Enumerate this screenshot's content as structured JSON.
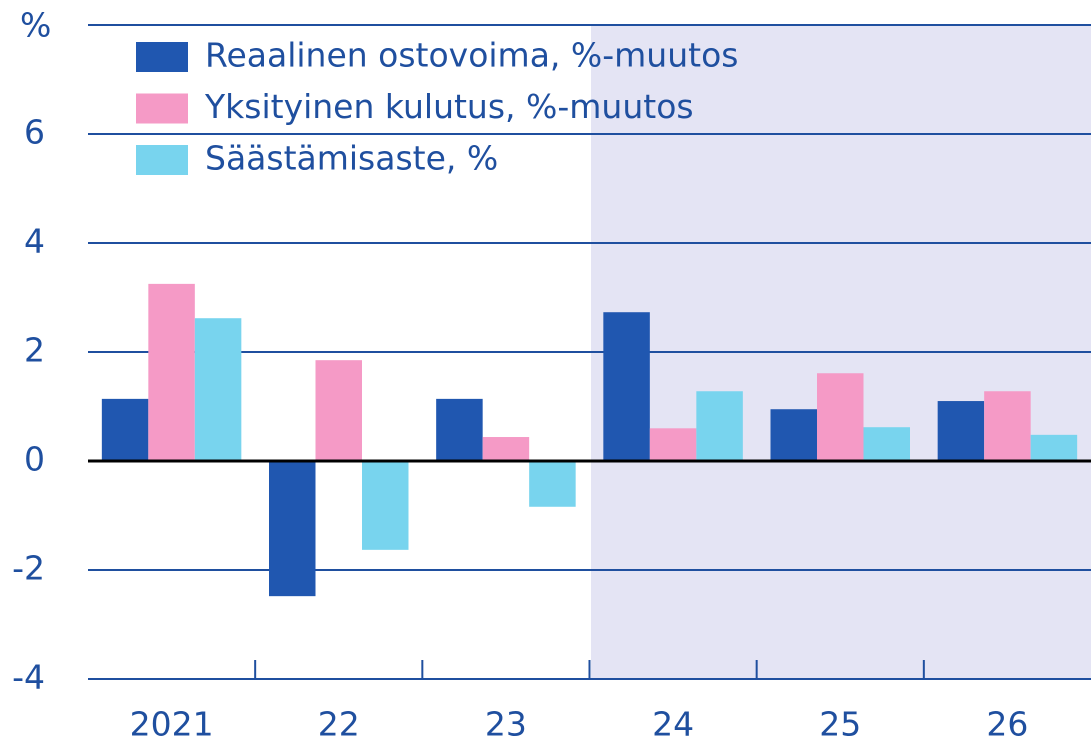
{
  "chart_data": {
    "type": "bar",
    "y_axis_label": "%",
    "categories": [
      "2021",
      "22",
      "23",
      "24",
      "25",
      "26"
    ],
    "series": [
      {
        "name": "Reaalinen ostovoima, %-muutos",
        "color": "#2057b0",
        "values": [
          1.14,
          -2.48,
          1.14,
          2.73,
          0.95,
          1.1
        ]
      },
      {
        "name": "Yksityinen kulutus, %-muutos",
        "color": "#f59ac6",
        "values": [
          3.25,
          1.85,
          0.44,
          0.6,
          1.61,
          1.28
        ]
      },
      {
        "name": "Säästämisaste, %",
        "color": "#78d4ee",
        "values": [
          2.62,
          -1.63,
          -0.84,
          1.28,
          0.62,
          0.48
        ]
      }
    ],
    "ylim": [
      -4,
      8
    ],
    "yticks": [
      -4,
      -2,
      0,
      2,
      4,
      6
    ],
    "grid": true,
    "legend": "upper left"
  }
}
